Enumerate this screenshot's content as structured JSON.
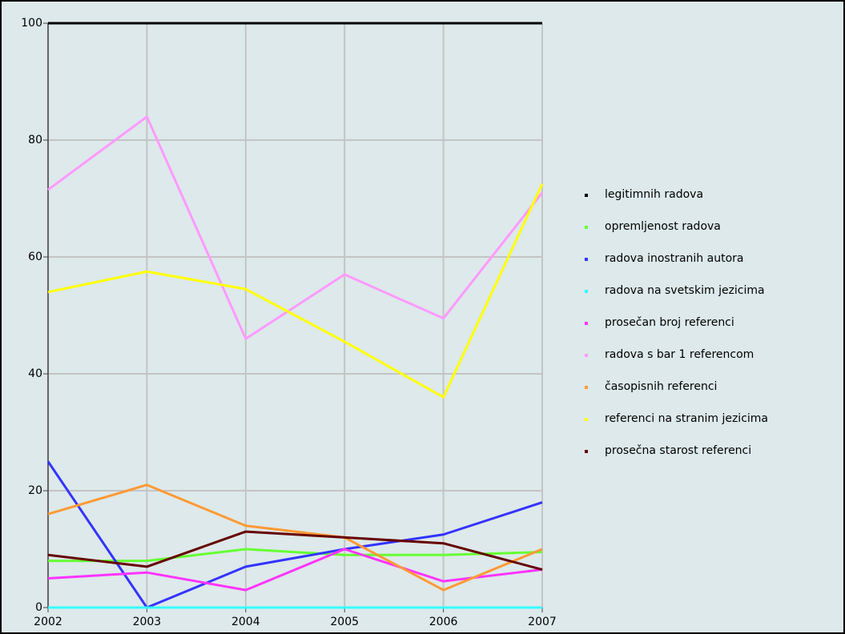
{
  "chart_data": {
    "type": "line",
    "x": [
      2002,
      2003,
      2004,
      2005,
      2006,
      2007
    ],
    "xlim": [
      2002,
      2007
    ],
    "xticks": [
      2002,
      2003,
      2004,
      2005,
      2006,
      2007
    ],
    "ylim": [
      0,
      100
    ],
    "yticks": [
      0,
      20,
      40,
      60,
      80,
      100
    ],
    "grid": true,
    "legend": "right",
    "series": [
      {
        "name": "legitimnih radova",
        "color": "#000000",
        "values": [
          100,
          100,
          100,
          100,
          100,
          100
        ]
      },
      {
        "name": "opremljenost radova",
        "color": "#66ff33",
        "values": [
          8,
          8,
          10,
          9,
          9,
          9.5
        ]
      },
      {
        "name": "radova inostranih autora",
        "color": "#3333ff",
        "values": [
          25,
          0,
          7,
          10,
          12.5,
          18
        ]
      },
      {
        "name": "radova na svetskim jezicima",
        "color": "#33ffff",
        "values": [
          0,
          0,
          0,
          0,
          0,
          0
        ]
      },
      {
        "name": "prosečan broj referenci",
        "color": "#ff33ff",
        "values": [
          5,
          6,
          3,
          10,
          4.5,
          6.5
        ]
      },
      {
        "name": "radova s bar 1 referencom",
        "color": "#ff99ff",
        "values": [
          71.5,
          84,
          46,
          57,
          49.5,
          71
        ]
      },
      {
        "name": "časopisnih referenci",
        "color": "#ff9933",
        "values": [
          16,
          21,
          14,
          12,
          3,
          10
        ]
      },
      {
        "name": "referenci na stranim jezicima",
        "color": "#ffff00",
        "values": [
          54,
          57.5,
          54.5,
          45.5,
          36,
          72.5
        ]
      },
      {
        "name": "prosečna starost referenci",
        "color": "#660000",
        "values": [
          9,
          7,
          13,
          12,
          11,
          6.5
        ]
      }
    ]
  }
}
